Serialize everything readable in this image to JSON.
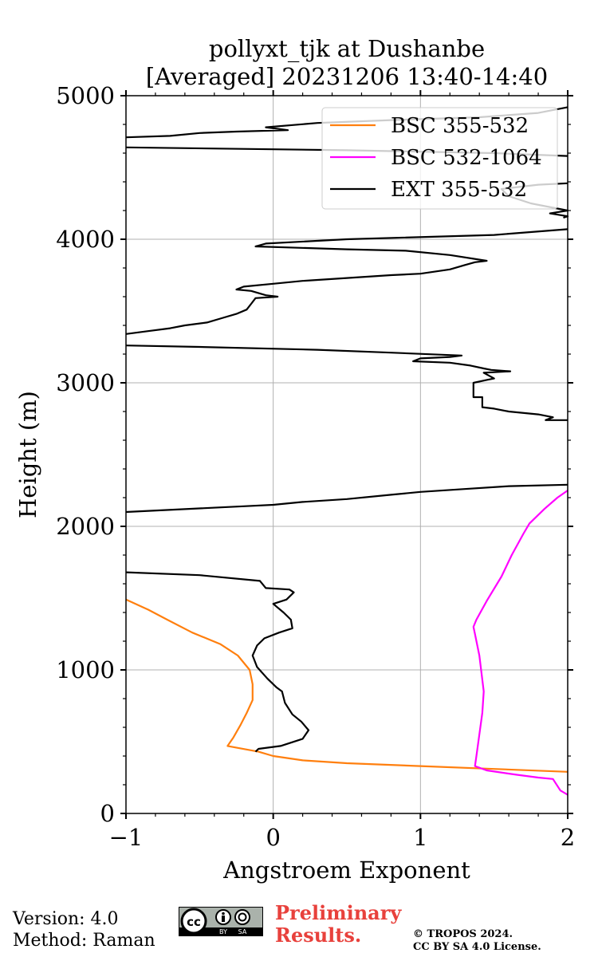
{
  "chart_data": {
    "type": "line",
    "title": [
      "pollyxt_tjk at Dushanbe",
      "[Averaged] 20231206 13:40-14:40"
    ],
    "xlabel": "Angstroem Exponent",
    "ylabel": "Height (m)",
    "xlim": [
      -1,
      2
    ],
    "ylim": [
      0,
      5000
    ],
    "xticks": [
      -1,
      0,
      1,
      2
    ],
    "xtick_labels": [
      "−1",
      "0",
      "1",
      "2"
    ],
    "yticks": [
      0,
      1000,
      2000,
      3000,
      4000,
      5000
    ],
    "ytick_labels": [
      "0",
      "1000",
      "2000",
      "3000",
      "4000",
      "5000"
    ],
    "grid": true,
    "legend_position": "top-right",
    "series": [
      {
        "name": "BSC 355-532",
        "color": "#ff7f0e",
        "points": [
          [
            2.0,
            290
          ],
          [
            1.5,
            310
          ],
          [
            1.0,
            330
          ],
          [
            0.5,
            350
          ],
          [
            0.2,
            370
          ],
          [
            0.0,
            400
          ],
          [
            -0.1,
            430
          ],
          [
            -0.31,
            470
          ],
          [
            -0.27,
            530
          ],
          [
            -0.22,
            620
          ],
          [
            -0.18,
            700
          ],
          [
            -0.14,
            790
          ],
          [
            -0.14,
            900
          ],
          [
            -0.16,
            1000
          ],
          [
            -0.24,
            1100
          ],
          [
            -0.36,
            1180
          ],
          [
            -0.55,
            1260
          ],
          [
            -0.72,
            1350
          ],
          [
            -0.85,
            1420
          ],
          [
            -1.0,
            1490
          ]
        ]
      },
      {
        "name": "BSC 532-1064",
        "color": "#ff00ff",
        "points": [
          [
            2.0,
            130
          ],
          [
            1.95,
            160
          ],
          [
            1.9,
            240
          ],
          [
            1.8,
            250
          ],
          [
            1.65,
            270
          ],
          [
            1.45,
            300
          ],
          [
            1.37,
            330
          ],
          [
            1.38,
            400
          ],
          [
            1.4,
            550
          ],
          [
            1.42,
            700
          ],
          [
            1.43,
            850
          ],
          [
            1.4,
            1100
          ],
          [
            1.37,
            1250
          ],
          [
            1.36,
            1300
          ],
          [
            1.38,
            1350
          ],
          [
            1.45,
            1480
          ],
          [
            1.55,
            1650
          ],
          [
            1.62,
            1800
          ],
          [
            1.7,
            1950
          ],
          [
            1.74,
            2020
          ],
          [
            1.84,
            2120
          ],
          [
            1.93,
            2200
          ],
          [
            2.0,
            2250
          ]
        ]
      },
      {
        "name": "EXT 355-532",
        "color": "#000000",
        "points": [
          [
            -0.12,
            430
          ],
          [
            -0.1,
            450
          ],
          [
            0.05,
            470
          ],
          [
            0.2,
            520
          ],
          [
            0.24,
            580
          ],
          [
            0.19,
            640
          ],
          [
            0.13,
            690
          ],
          [
            0.08,
            770
          ],
          [
            0.06,
            850
          ],
          [
            0.02,
            880
          ],
          [
            -0.04,
            940
          ],
          [
            -0.11,
            1020
          ],
          [
            -0.14,
            1100
          ],
          [
            -0.11,
            1170
          ],
          [
            -0.06,
            1220
          ],
          [
            0.04,
            1260
          ],
          [
            0.13,
            1290
          ],
          [
            0.12,
            1350
          ],
          [
            0.07,
            1400
          ],
          [
            0.0,
            1460
          ],
          [
            0.09,
            1490
          ],
          [
            0.14,
            1540
          ],
          [
            0.11,
            1560
          ],
          [
            -0.05,
            1570
          ],
          [
            -0.09,
            1620
          ],
          [
            -0.5,
            1660
          ],
          [
            -1.0,
            1680
          ],
          null,
          [
            -1.0,
            2100
          ],
          [
            -0.2,
            2140
          ],
          [
            0.0,
            2150
          ],
          [
            0.2,
            2170
          ],
          [
            0.5,
            2190
          ],
          [
            0.8,
            2220
          ],
          [
            1.0,
            2240
          ],
          [
            1.3,
            2260
          ],
          [
            1.6,
            2280
          ],
          [
            2.0,
            2290
          ],
          null,
          [
            2.0,
            2740
          ],
          [
            1.85,
            2740
          ],
          [
            1.9,
            2760
          ],
          [
            1.8,
            2780
          ],
          [
            1.6,
            2800
          ],
          [
            1.5,
            2820
          ],
          [
            1.42,
            2830
          ],
          [
            1.42,
            2900
          ],
          [
            1.36,
            2900
          ],
          [
            1.36,
            3000
          ],
          [
            1.45,
            3020
          ],
          [
            1.5,
            3030
          ],
          [
            1.43,
            3070
          ],
          [
            1.61,
            3080
          ],
          [
            1.48,
            3090
          ],
          [
            1.43,
            3100
          ],
          [
            1.34,
            3120
          ],
          [
            1.2,
            3140
          ],
          [
            0.95,
            3150
          ],
          [
            1.0,
            3170
          ],
          [
            1.2,
            3180
          ],
          [
            1.28,
            3190
          ],
          [
            0.8,
            3210
          ],
          [
            0.3,
            3230
          ],
          [
            -0.5,
            3250
          ],
          [
            -1.0,
            3260
          ],
          null,
          [
            -1.0,
            3340
          ],
          [
            -0.85,
            3360
          ],
          [
            -0.7,
            3380
          ],
          [
            -0.6,
            3400
          ],
          [
            -0.45,
            3420
          ],
          [
            -0.35,
            3450
          ],
          [
            -0.25,
            3480
          ],
          [
            -0.18,
            3510
          ],
          [
            -0.15,
            3550
          ],
          [
            -0.12,
            3590
          ],
          [
            0.03,
            3600
          ],
          [
            -0.05,
            3610
          ],
          [
            -0.15,
            3640
          ],
          [
            -0.25,
            3650
          ],
          [
            -0.2,
            3670
          ],
          [
            0.0,
            3690
          ],
          [
            0.2,
            3710
          ],
          [
            0.5,
            3730
          ],
          [
            0.8,
            3750
          ],
          [
            1.0,
            3760
          ],
          [
            1.2,
            3790
          ],
          [
            1.3,
            3820
          ],
          [
            1.37,
            3840
          ],
          [
            1.45,
            3850
          ],
          [
            1.2,
            3890
          ],
          [
            0.9,
            3920
          ],
          [
            0.5,
            3930
          ],
          [
            -0.12,
            3950
          ],
          [
            -0.05,
            3970
          ],
          [
            0.5,
            4000
          ],
          [
            1.5,
            4030
          ],
          [
            2.0,
            4070
          ],
          null,
          [
            1.97,
            4150
          ],
          [
            2.0,
            4160
          ],
          [
            1.88,
            4180
          ],
          [
            2.0,
            4200
          ],
          [
            1.75,
            4250
          ],
          [
            1.6,
            4300
          ],
          [
            1.55,
            4350
          ],
          [
            1.8,
            4380
          ],
          [
            2.0,
            4390
          ],
          null,
          [
            2.0,
            4580
          ],
          [
            1.5,
            4600
          ],
          [
            0.5,
            4620
          ],
          [
            -1.0,
            4640
          ],
          null,
          [
            -1.0,
            4710
          ],
          [
            -0.7,
            4720
          ],
          [
            -0.5,
            4740
          ],
          [
            -0.25,
            4750
          ],
          [
            0.1,
            4760
          ],
          [
            -0.05,
            4780
          ],
          [
            0.3,
            4810
          ],
          [
            0.8,
            4830
          ],
          [
            1.4,
            4850
          ],
          [
            1.8,
            4880
          ],
          [
            2.0,
            4920
          ]
        ]
      }
    ]
  },
  "footer": {
    "version_line": "Version: 4.0",
    "method_line": "Method: Raman",
    "preliminary_line1": "Preliminary",
    "preliminary_line2": "Results.",
    "copyright_line1": "© TROPOS 2024.",
    "copyright_line2": "CC BY SA 4.0 License.",
    "license_logo_text": [
      "cc",
      "BY",
      "SA"
    ]
  }
}
